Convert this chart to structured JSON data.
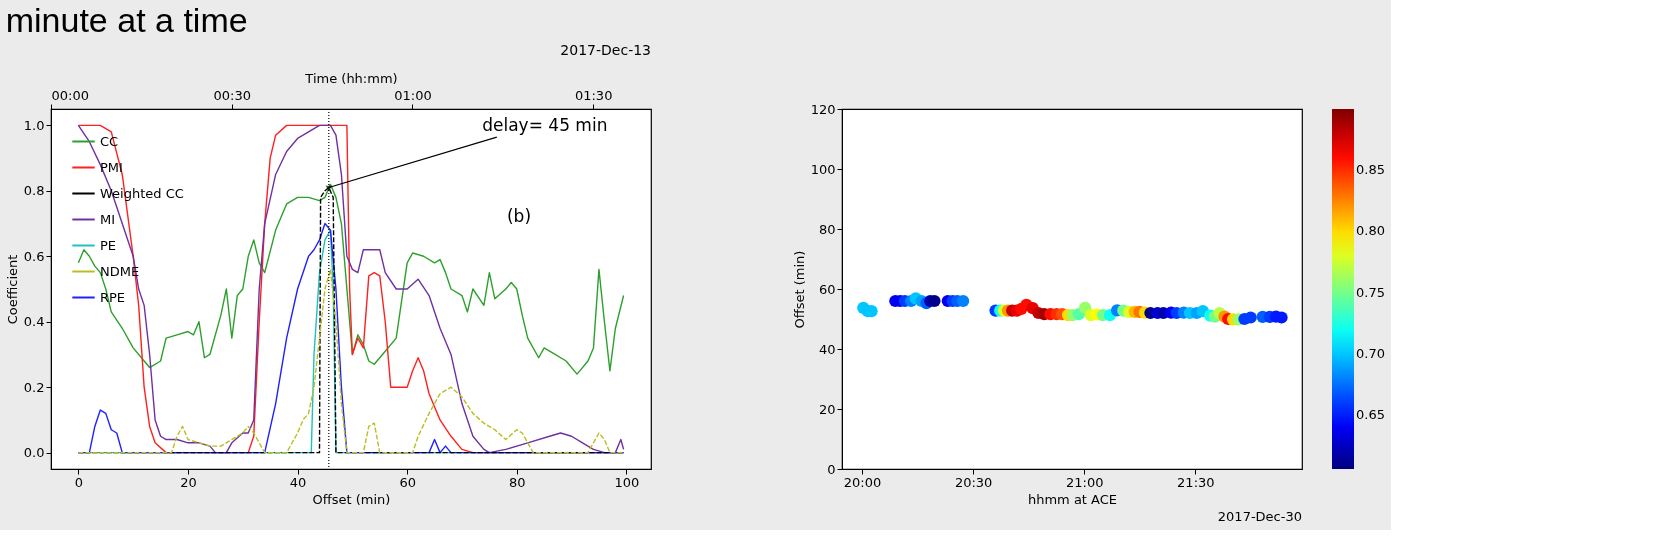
{
  "chart_data": [
    {
      "type": "line",
      "title": "minute at a time",
      "xlabel": "Offset (min)",
      "ylabel": "Coefficient",
      "x2label": "Time (hh:mm)",
      "xlim": [
        -5,
        104.5
      ],
      "xticks": [
        0,
        20,
        40,
        60,
        80,
        100
      ],
      "ylim": [
        -0.05,
        1.05
      ],
      "yticks": [
        {
          "value": 0,
          "label": "0.0"
        },
        0.2,
        0.4,
        0.6,
        0.8,
        {
          "value": 1,
          "label": "1.0"
        }
      ],
      "x2lim": [
        0,
        99.6
      ],
      "x2ticks": [
        {
          "value": 0,
          "label": "00:00"
        },
        {
          "value": 30,
          "label": "00:30"
        },
        {
          "value": 60,
          "label": "01:00"
        },
        {
          "value": 90,
          "label": "01:30"
        }
      ],
      "annotations": [
        {
          "text": "delay= 45 min",
          "x": 45.7,
          "y": 0.81
        },
        "(b)",
        "2017-Dec-13"
      ],
      "ref_lines": [
        {
          "axis": "x",
          "value": 45.7,
          "color": "#000000",
          "line_style": "dotted"
        }
      ],
      "legend": "top left",
      "grid": false,
      "series": [
        {
          "name": "CC",
          "color": "#2ca02c",
          "line_style": "solid",
          "x": [
            0,
            1,
            2,
            3,
            4,
            5,
            6,
            8,
            10,
            12,
            13,
            15,
            16,
            18,
            20,
            21,
            22,
            23,
            24,
            26,
            27,
            28,
            29,
            30,
            31,
            32,
            33,
            34,
            36,
            38,
            40,
            42,
            44,
            45,
            46,
            47,
            48,
            49,
            50,
            51,
            52,
            53,
            54,
            56,
            58,
            60,
            61,
            63,
            65,
            66,
            67,
            68,
            70,
            71,
            72,
            74,
            75,
            76,
            78,
            79,
            80,
            81,
            82,
            84,
            85,
            87,
            89,
            91,
            93,
            94,
            95,
            96,
            97,
            98,
            99.5
          ],
          "values": [
            0.58,
            0.62,
            0.6,
            0.57,
            0.55,
            0.5,
            0.43,
            0.38,
            0.32,
            0.28,
            0.26,
            0.28,
            0.35,
            0.36,
            0.37,
            0.36,
            0.4,
            0.29,
            0.3,
            0.42,
            0.5,
            0.35,
            0.48,
            0.5,
            0.6,
            0.65,
            0.58,
            0.55,
            0.68,
            0.76,
            0.78,
            0.78,
            0.77,
            0.78,
            0.82,
            0.78,
            0.7,
            0.5,
            0.3,
            0.36,
            0.33,
            0.28,
            0.27,
            0.31,
            0.35,
            0.58,
            0.61,
            0.6,
            0.58,
            0.59,
            0.55,
            0.5,
            0.48,
            0.43,
            0.5,
            0.45,
            0.55,
            0.47,
            0.5,
            0.52,
            0.5,
            0.42,
            0.35,
            0.29,
            0.32,
            0.3,
            0.28,
            0.24,
            0.28,
            0.32,
            0.56,
            0.4,
            0.25,
            0.38,
            0.48
          ]
        },
        {
          "name": "PMI",
          "color": "#ff2020",
          "line_style": "solid",
          "x": [
            0,
            4,
            6,
            8,
            10,
            11,
            12,
            13,
            14,
            16,
            31,
            32,
            33,
            34,
            35,
            36,
            38,
            48,
            49,
            49.5,
            50,
            51,
            52,
            53,
            54,
            55,
            56,
            57,
            58,
            60,
            61,
            62,
            63,
            64,
            66,
            68,
            70,
            72,
            99.5
          ],
          "values": [
            1.0,
            1.0,
            0.98,
            0.85,
            0.6,
            0.45,
            0.2,
            0.08,
            0.03,
            0.0,
            0.0,
            0.05,
            0.4,
            0.7,
            0.9,
            0.97,
            1.0,
            1.0,
            1.0,
            0.5,
            0.3,
            0.35,
            0.32,
            0.54,
            0.55,
            0.54,
            0.4,
            0.2,
            0.2,
            0.2,
            0.25,
            0.29,
            0.25,
            0.18,
            0.1,
            0.05,
            0.01,
            0.0,
            0.0
          ]
        },
        {
          "name": "Weighted CC",
          "color": "#000000",
          "line_style": "dashed",
          "x": [
            0,
            44,
            44.2,
            45,
            45.7,
            46.5,
            47,
            99.5
          ],
          "values": [
            0,
            0,
            0.78,
            0.8,
            0.81,
            0.78,
            0,
            0
          ]
        },
        {
          "name": "MI",
          "color": "#7030a0",
          "line_style": "solid",
          "x": [
            0,
            2,
            4,
            6,
            8,
            10,
            11,
            12,
            13,
            14,
            15,
            16,
            18,
            20,
            22,
            24,
            25,
            27,
            28,
            30,
            31,
            32,
            33,
            34,
            36,
            38,
            40,
            42,
            44,
            46,
            47,
            48,
            49,
            50,
            51,
            52,
            55,
            56,
            58,
            60,
            62,
            64,
            66,
            68,
            70,
            72,
            74,
            75,
            78,
            82,
            86,
            88,
            90,
            92,
            94,
            96,
            98,
            99,
            99.5
          ],
          "values": [
            1.0,
            0.95,
            0.88,
            0.8,
            0.7,
            0.6,
            0.5,
            0.45,
            0.3,
            0.1,
            0.05,
            0.04,
            0.04,
            0.03,
            0.03,
            0.02,
            0.0,
            0.0,
            0.03,
            0.06,
            0.06,
            0.1,
            0.5,
            0.7,
            0.85,
            0.92,
            0.96,
            0.98,
            1.0,
            1.0,
            0.97,
            0.85,
            0.6,
            0.56,
            0.55,
            0.62,
            0.62,
            0.55,
            0.5,
            0.5,
            0.53,
            0.48,
            0.38,
            0.3,
            0.15,
            0.05,
            0.01,
            0.0,
            0.01,
            0.03,
            0.05,
            0.06,
            0.05,
            0.03,
            0.01,
            0.0,
            0.0,
            0.04,
            0.01
          ]
        },
        {
          "name": "PE",
          "color": "#20c0c0",
          "line_style": "solid",
          "x": [
            0,
            42.5,
            43,
            44,
            45,
            46,
            46.5,
            47,
            99.5
          ],
          "values": [
            0,
            0,
            0.3,
            0.55,
            0.65,
            0.68,
            0.5,
            0,
            0
          ]
        },
        {
          "name": "NDME",
          "color": "#bcbd22",
          "line_style": "dashed",
          "x": [
            0,
            17,
            18,
            19,
            20,
            22,
            24,
            26,
            28,
            30,
            31,
            32,
            34,
            38,
            40,
            41,
            42,
            43,
            44,
            45,
            46,
            47,
            48,
            49,
            52,
            53,
            54,
            55,
            61,
            62,
            64,
            66,
            68,
            70,
            72,
            74,
            76,
            78,
            80,
            81,
            83,
            93,
            95,
            96,
            97,
            99.5
          ],
          "values": [
            0,
            0,
            0.05,
            0.08,
            0.04,
            0.03,
            0.02,
            0.02,
            0.04,
            0.06,
            0.08,
            0.06,
            0,
            0,
            0.06,
            0.1,
            0.12,
            0.2,
            0.35,
            0.5,
            0.56,
            0.4,
            0.15,
            0,
            0,
            0.08,
            0.09,
            0,
            0,
            0.05,
            0.12,
            0.18,
            0.2,
            0.17,
            0.12,
            0.09,
            0.07,
            0.04,
            0.07,
            0.06,
            0,
            0,
            0.06,
            0.04,
            0,
            0
          ]
        },
        {
          "name": "RPE",
          "color": "#2020ff",
          "line_style": "solid",
          "x": [
            0,
            2,
            3,
            4,
            5,
            6,
            7,
            8,
            34,
            36,
            38,
            40,
            42,
            43,
            44,
            45,
            46,
            47,
            48,
            49,
            64,
            65,
            66,
            67,
            68,
            99.5
          ],
          "values": [
            0,
            0,
            0.08,
            0.13,
            0.12,
            0.07,
            0.06,
            0,
            0,
            0.15,
            0.35,
            0.5,
            0.6,
            0.62,
            0.65,
            0.7,
            0.68,
            0.5,
            0.2,
            0,
            0,
            0.04,
            0,
            0.02,
            0,
            0
          ]
        }
      ]
    },
    {
      "type": "scatter",
      "xlabel": "hhmm at ACE",
      "ylabel": "Offset (min)",
      "marker": "circle",
      "grid": false,
      "xlim": [
        19.91,
        21.98
      ],
      "xticks": [
        {
          "value": 20,
          "label": "20:00"
        },
        {
          "value": 20.5,
          "label": "20:30"
        },
        {
          "value": 21,
          "label": "21:00"
        },
        {
          "value": 21.5,
          "label": "21:30"
        }
      ],
      "ylim": [
        0,
        120
      ],
      "yticks": [
        0,
        20,
        40,
        60,
        80,
        100,
        120
      ],
      "clim": [
        0.606,
        0.9
      ],
      "cticks": [
        0.65,
        {
          "value": 0.7,
          "label": "0.70"
        },
        0.75,
        {
          "value": 0.8,
          "label": "0.80"
        },
        0.85
      ],
      "annotations": [
        "2017-Dec-30"
      ],
      "x": [
        20.006,
        20.026,
        20.043,
        20.15,
        20.172,
        20.193,
        20.221,
        20.242,
        20.268,
        20.29,
        20.307,
        20.326,
        20.386,
        20.408,
        20.429,
        20.455,
        20.601,
        20.622,
        20.639,
        20.657,
        20.676,
        20.697,
        20.717,
        20.74,
        20.768,
        20.794,
        20.82,
        20.848,
        20.876,
        20.901,
        20.927,
        20.948,
        20.976,
        21.004,
        21.03,
        21.056,
        21.084,
        21.116,
        21.148,
        21.176,
        21.202,
        21.227,
        21.249,
        21.273,
        21.298,
        21.33,
        21.356,
        21.391,
        21.416,
        21.448,
        21.476,
        21.506,
        21.534,
        21.567,
        21.588,
        21.609,
        21.631,
        21.648,
        21.67,
        21.695,
        21.721,
        21.749,
        21.803,
        21.835,
        21.863,
        21.888
      ],
      "values": [
        53.7,
        52.6,
        52.6,
        56.0,
        56.0,
        56.0,
        56.0,
        56.9,
        56.0,
        55.3,
        56.0,
        56.0,
        56.0,
        56.0,
        56.0,
        56.0,
        52.8,
        52.8,
        52.8,
        52.8,
        52.8,
        52.8,
        53.4,
        54.7,
        53.6,
        52.0,
        51.6,
        51.6,
        51.6,
        51.6,
        51.3,
        51.3,
        51.6,
        53.7,
        51.3,
        51.5,
        51.3,
        51.3,
        52.9,
        52.8,
        52.4,
        52.4,
        52.4,
        52.1,
        52.0,
        52.0,
        52.0,
        52.1,
        52.0,
        52.1,
        52.0,
        52.0,
        52.6,
        51.1,
        50.8,
        52.0,
        50.8,
        50.0,
        49.9,
        49.9,
        50.0,
        50.5,
        50.7,
        50.7,
        50.8,
        50.5
      ],
      "cvalues": [
        0.7,
        0.7,
        0.7,
        0.64,
        0.64,
        0.66,
        0.68,
        0.7,
        0.69,
        0.67,
        0.62,
        0.61,
        0.64,
        0.66,
        0.67,
        0.68,
        0.66,
        0.72,
        0.78,
        0.82,
        0.88,
        0.87,
        0.86,
        0.86,
        0.87,
        0.88,
        0.89,
        0.86,
        0.85,
        0.84,
        0.8,
        0.76,
        0.74,
        0.76,
        0.78,
        0.79,
        0.75,
        0.72,
        0.68,
        0.75,
        0.78,
        0.81,
        0.83,
        0.8,
        0.61,
        0.63,
        0.62,
        0.64,
        0.66,
        0.68,
        0.7,
        0.69,
        0.7,
        0.72,
        0.75,
        0.77,
        0.82,
        0.86,
        0.8,
        0.76,
        0.66,
        0.66,
        0.67,
        0.66,
        0.65,
        0.65
      ]
    }
  ]
}
